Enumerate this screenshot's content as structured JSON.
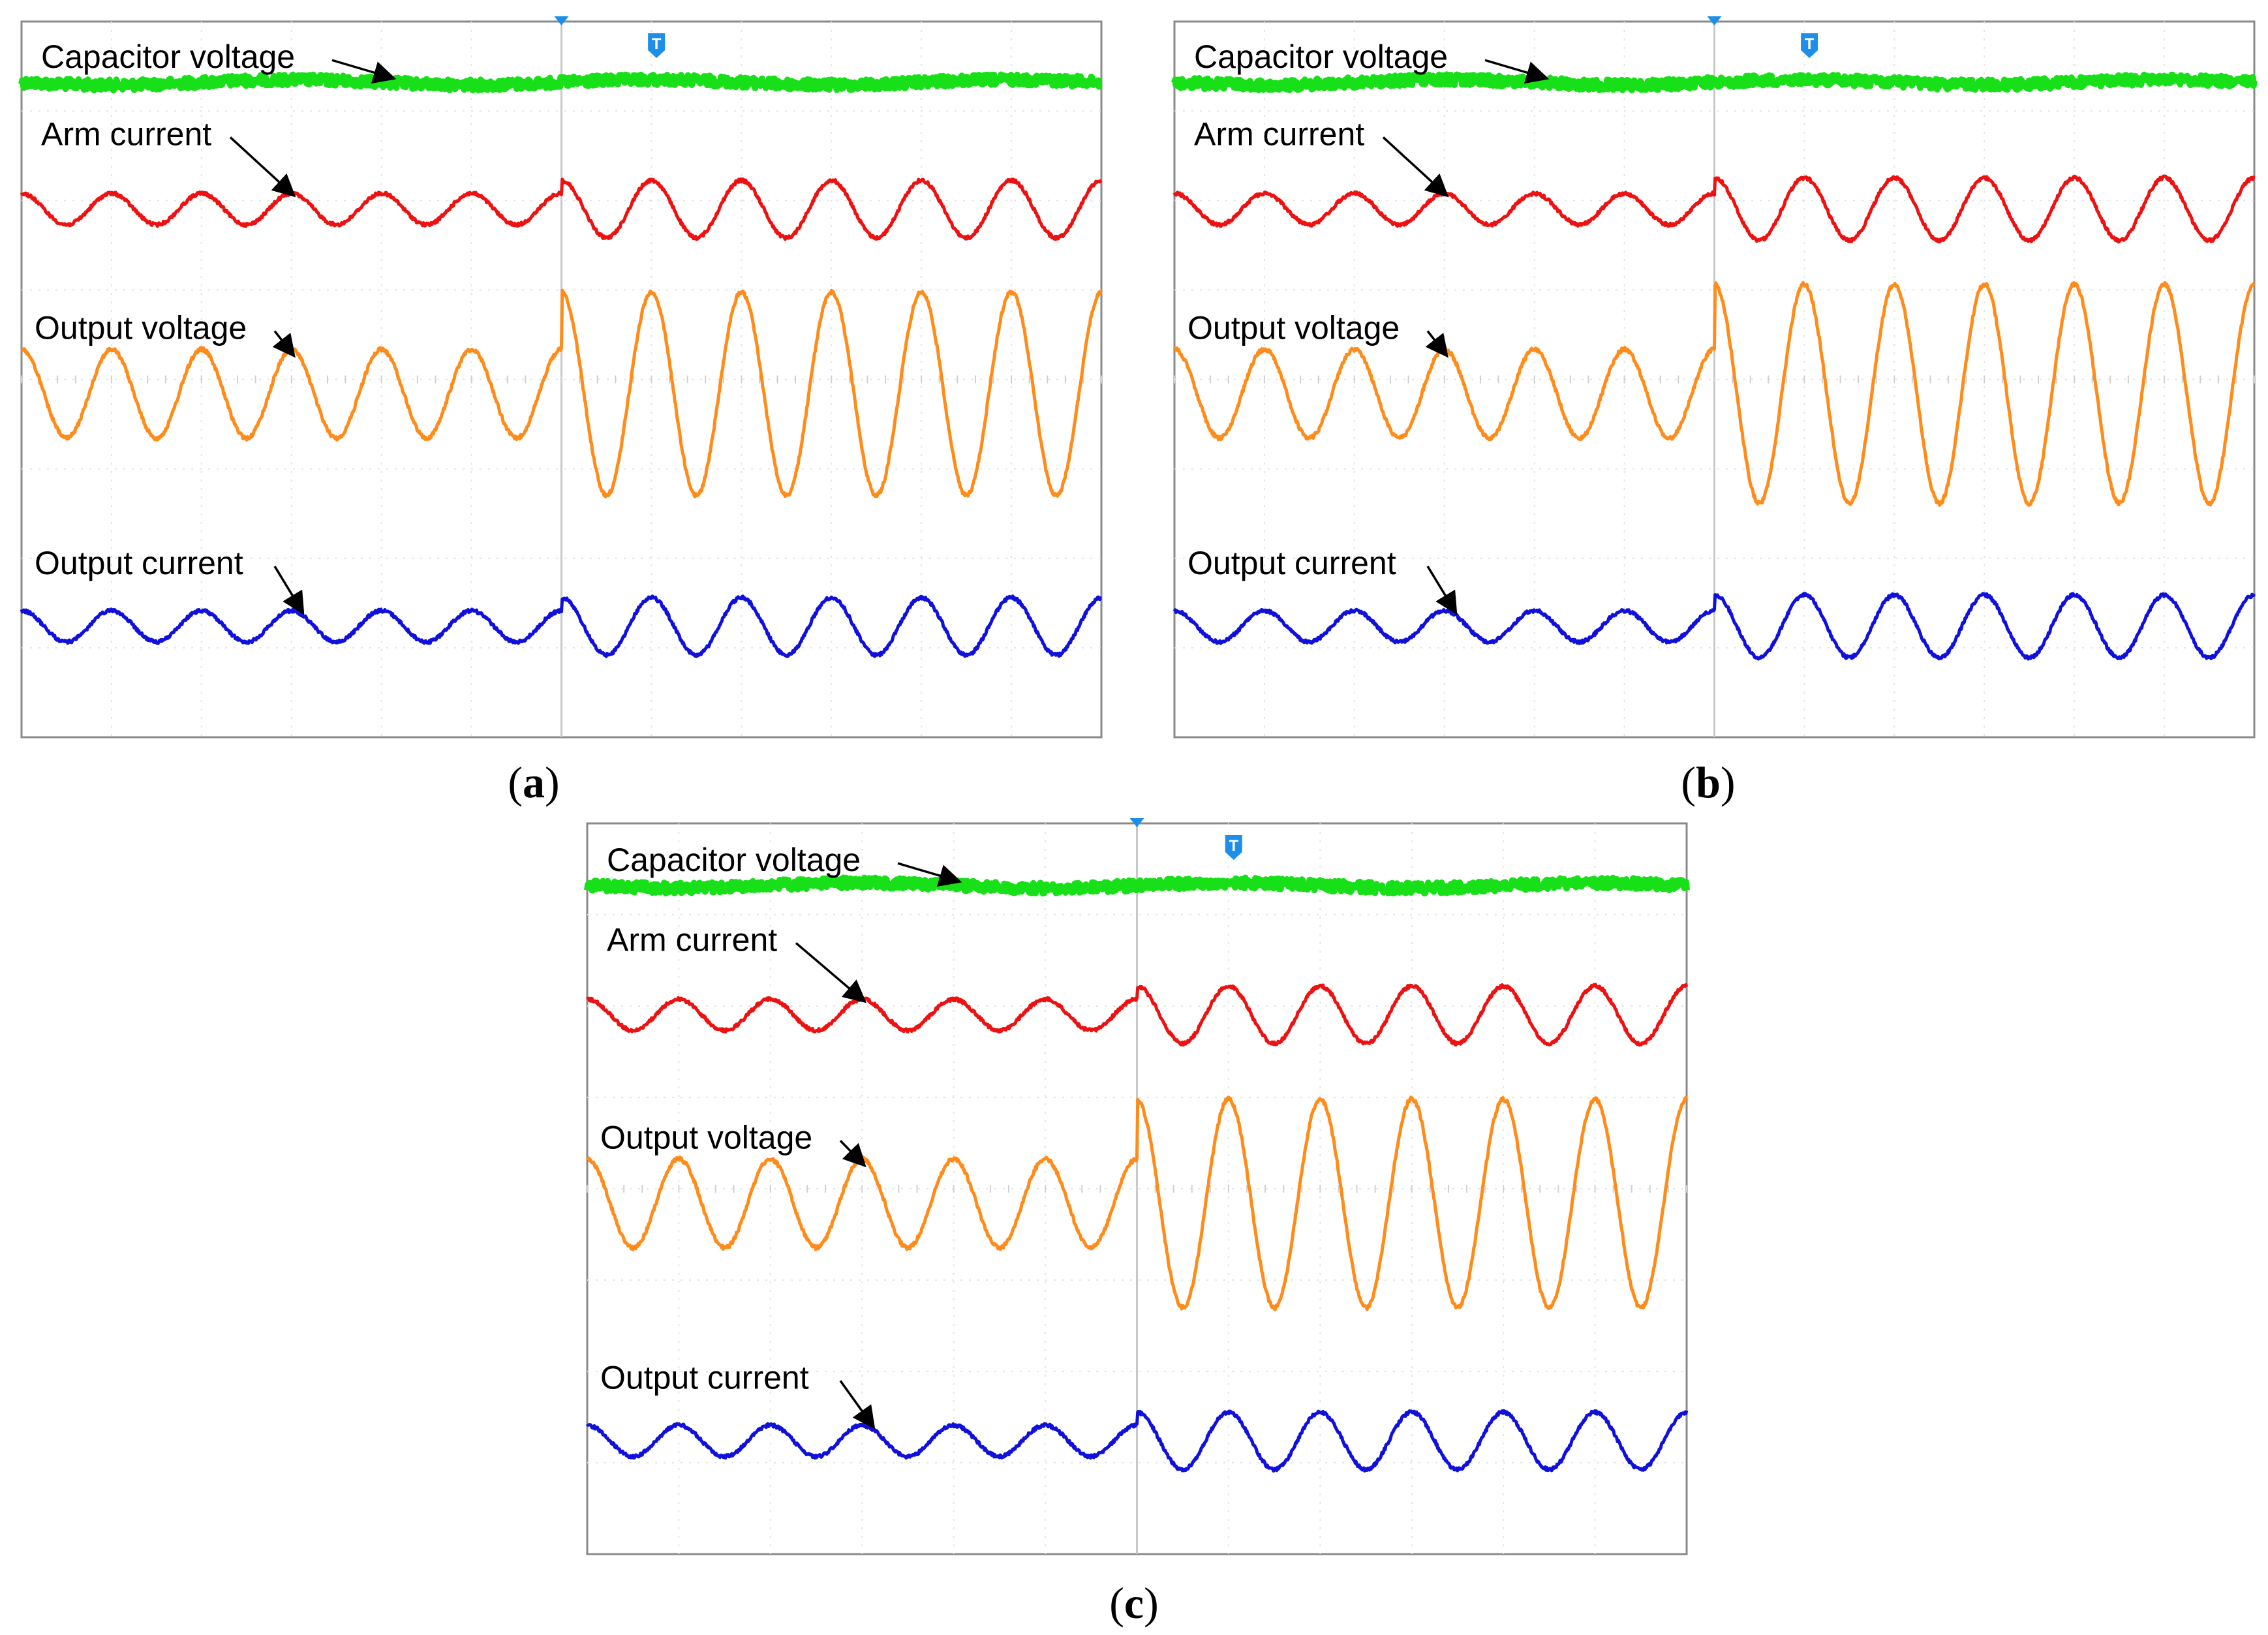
{
  "chart_data": [
    {
      "type": "line",
      "panel_label": "a",
      "panels_note": "",
      "colors": {
        "capacitor": "#18e018",
        "arm": "#ee1111",
        "output_voltage": "#ff8c1a",
        "output_current": "#1010dd"
      },
      "trigger_markers": [
        "T"
      ],
      "series": [
        {
          "label": "Capacitor voltage",
          "key": "capacitor",
          "amplitude_before": 0.04,
          "amplitude_after": 0.04,
          "cycles_per_half": 6
        },
        {
          "label": "Arm current",
          "key": "arm",
          "amplitude_before": 0.3,
          "amplitude_after": 0.55,
          "cycles_per_half": 6
        },
        {
          "label": "Output voltage",
          "key": "output_voltage",
          "amplitude_before": 0.85,
          "amplitude_after": 1.95,
          "cycles_per_half": 6
        },
        {
          "label": "Output current",
          "key": "output_current",
          "amplitude_before": 0.3,
          "amplitude_after": 0.55,
          "cycles_per_half": 6
        }
      ]
    },
    {
      "type": "line",
      "panel_label": "b",
      "colors": {
        "capacitor": "#18e018",
        "arm": "#ee1111",
        "output_voltage": "#ff8c1a",
        "output_current": "#1010dd"
      },
      "trigger_markers": [
        "T"
      ],
      "series": [
        {
          "label": "Capacitor voltage",
          "key": "capacitor",
          "amplitude_before": 0.04,
          "amplitude_after": 0.04,
          "cycles_per_half": 6
        },
        {
          "label": "Arm current",
          "key": "arm",
          "amplitude_before": 0.3,
          "amplitude_after": 0.6,
          "cycles_per_half": 6
        },
        {
          "label": "Output voltage",
          "key": "output_voltage",
          "amplitude_before": 0.85,
          "amplitude_after": 2.1,
          "cycles_per_half": 6
        },
        {
          "label": "Output current",
          "key": "output_current",
          "amplitude_before": 0.3,
          "amplitude_after": 0.6,
          "cycles_per_half": 6
        }
      ]
    },
    {
      "type": "line",
      "panel_label": "c",
      "colors": {
        "capacitor": "#18e018",
        "arm": "#ee1111",
        "output_voltage": "#ff8c1a",
        "output_current": "#1010dd"
      },
      "trigger_markers": [
        "T"
      ],
      "series": [
        {
          "label": "Capacitor voltage",
          "key": "capacitor",
          "amplitude_before": 0.04,
          "amplitude_after": 0.04,
          "cycles_per_half": 6
        },
        {
          "label": "Arm current",
          "key": "arm",
          "amplitude_before": 0.3,
          "amplitude_after": 0.55,
          "cycles_per_half": 6
        },
        {
          "label": "Output voltage",
          "key": "output_voltage",
          "amplitude_before": 0.85,
          "amplitude_after": 2.0,
          "cycles_per_half": 6
        },
        {
          "label": "Output current",
          "key": "output_current",
          "amplitude_before": 0.3,
          "amplitude_after": 0.55,
          "cycles_per_half": 6
        }
      ]
    }
  ]
}
